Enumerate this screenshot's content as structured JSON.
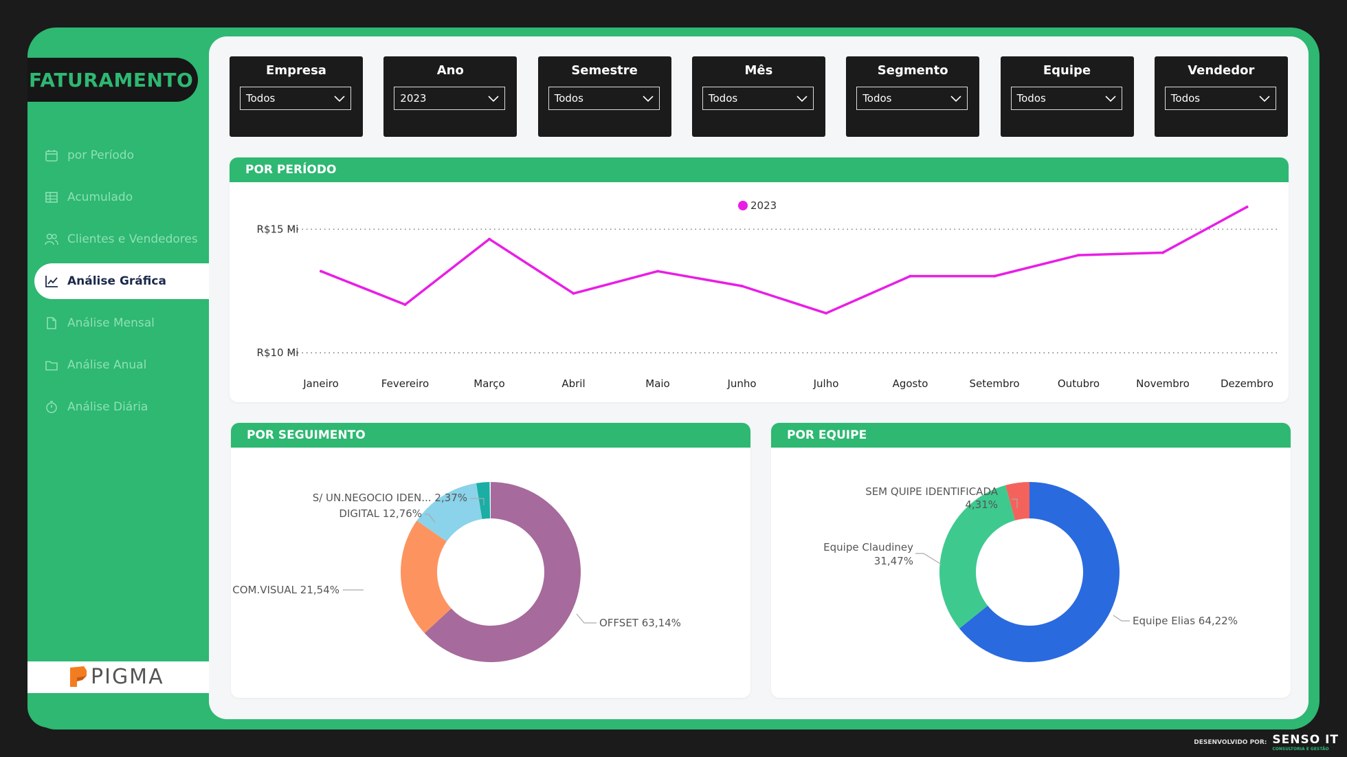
{
  "app": {
    "title": "FATURAMENTO"
  },
  "nav": [
    {
      "label": "por Período",
      "icon": "calendar-icon",
      "active": false
    },
    {
      "label": "Acumulado",
      "icon": "table-icon",
      "active": false
    },
    {
      "label": "Clientes e Vendedores",
      "icon": "users-icon",
      "active": false
    },
    {
      "label": "Análise Gráfica",
      "icon": "line-chart-icon",
      "active": true
    },
    {
      "label": "Análise Mensal",
      "icon": "document-icon",
      "active": false
    },
    {
      "label": "Análise Anual",
      "icon": "folder-icon",
      "active": false
    },
    {
      "label": "Análise Diária",
      "icon": "stopwatch-icon",
      "active": false
    }
  ],
  "logo": {
    "text": "PIGMA",
    "color": "#f47c20"
  },
  "filters": [
    {
      "label": "Empresa",
      "value": "Todos"
    },
    {
      "label": "Ano",
      "value": "2023"
    },
    {
      "label": "Semestre",
      "value": "Todos"
    },
    {
      "label": "Mês",
      "value": "Todos"
    },
    {
      "label": "Segmento",
      "value": "Todos"
    },
    {
      "label": "Equipe",
      "value": "Todos"
    },
    {
      "label": "Vendedor",
      "value": "Todos"
    }
  ],
  "period_card": {
    "title": "POR PERÍODO"
  },
  "segment_card": {
    "title": "POR SEGUIMENTO"
  },
  "team_card": {
    "title": "POR EQUIPE"
  },
  "colors": {
    "accent": "#2eb872",
    "line": "#e91ee5",
    "dark": "#1b1b1b"
  },
  "chart_data": [
    {
      "type": "line",
      "legend": "2023",
      "series": [
        {
          "name": "2023",
          "color": "#e91ee5",
          "values": [
            13.3,
            11.95,
            14.6,
            12.4,
            13.3,
            12.7,
            11.6,
            13.1,
            13.1,
            13.95,
            14.05,
            15.9
          ]
        }
      ],
      "categories": [
        "Janeiro",
        "Fevereiro",
        "Março",
        "Abril",
        "Maio",
        "Junho",
        "Julho",
        "Agosto",
        "Setembro",
        "Outubro",
        "Novembro",
        "Dezembro"
      ],
      "y_ticks": [
        {
          "value": 10,
          "label": "R$10 Mi"
        },
        {
          "value": 15,
          "label": "R$15 Mi"
        }
      ],
      "ylim": [
        8.0,
        16.9
      ],
      "grid": "dotted"
    },
    {
      "type": "pie",
      "donut": true,
      "slices": [
        {
          "label": "OFFSET",
          "pct": 63.14,
          "text": "OFFSET 63,14%",
          "color": "#a66a9c"
        },
        {
          "label": "COM.VISUAL",
          "pct": 21.54,
          "text": "COM.VISUAL 21,54%",
          "color": "#fd9460"
        },
        {
          "label": "DIGITAL",
          "pct": 12.76,
          "text": "DIGITAL 12,76%",
          "color": "#8ad3ea"
        },
        {
          "label": "S/ UN.NEGOCIO IDEN...",
          "pct": 2.37,
          "text": "S/ UN.NEGOCIO IDEN... 2,37%",
          "color": "#1aaea4"
        }
      ]
    },
    {
      "type": "pie",
      "donut": true,
      "slices": [
        {
          "label": "Equipe Elias",
          "pct": 64.22,
          "text1": "Equipe Elias 64,22%",
          "text2": "",
          "color": "#2a6adf"
        },
        {
          "label": "Equipe Claudiney",
          "pct": 31.47,
          "text1": "Equipe Claudiney",
          "text2": "31,47%",
          "color": "#3ec98f"
        },
        {
          "label": "SEM QUIPE IDENTIFICADA",
          "pct": 4.31,
          "text1": "SEM QUIPE IDENTIFICADA",
          "text2": "4,31%",
          "color": "#f4625c"
        }
      ]
    }
  ],
  "footer": {
    "developed_by": "DESENVOLVIDO POR:",
    "brand": "SENSO IT",
    "sub": "CONSULTORIA E GESTÃO"
  }
}
